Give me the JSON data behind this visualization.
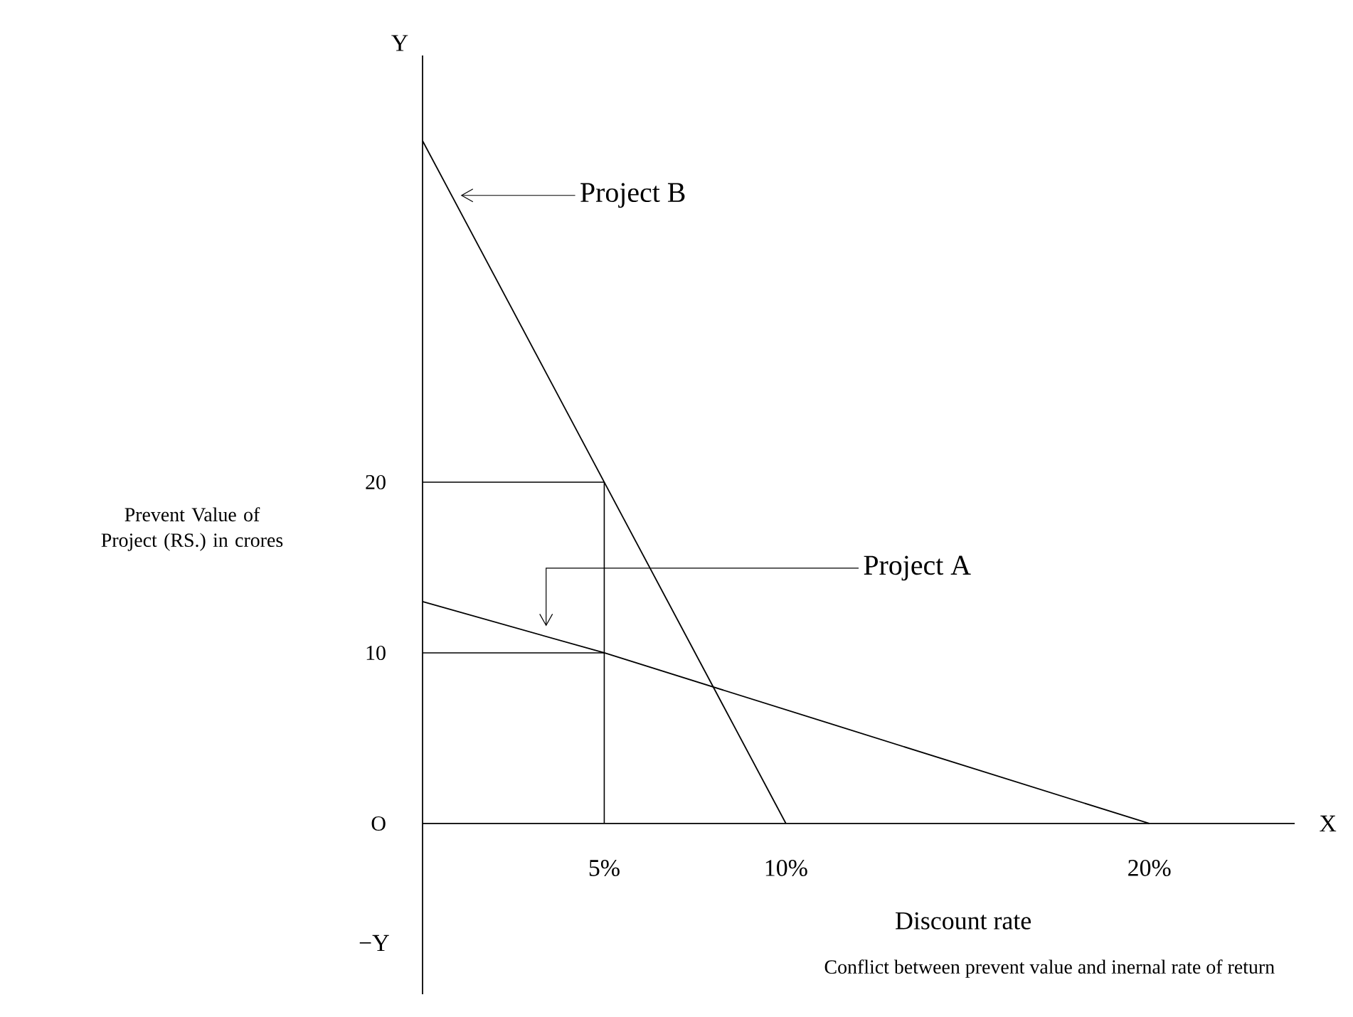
{
  "chart_data": {
    "type": "line",
    "xlabel": "Discount rate",
    "ylabel": "Prevent Value of Project (RS.) in crores",
    "xlim": [
      0,
      24
    ],
    "ylim": [
      -10,
      45
    ],
    "xticks": [
      {
        "value": 5,
        "label": "5%"
      },
      {
        "value": 10,
        "label": "10%"
      },
      {
        "value": 20,
        "label": "20%"
      }
    ],
    "yticks": [
      {
        "value": 0,
        "label": "O"
      },
      10,
      20
    ],
    "series": [
      {
        "name": "Project B",
        "color": "#000000",
        "x": [
          0,
          10
        ],
        "values": [
          40,
          0
        ]
      },
      {
        "name": "Project A",
        "color": "#000000",
        "x": [
          0,
          5,
          20
        ],
        "values": [
          13,
          10,
          0
        ]
      }
    ],
    "ref_lines": [
      {
        "axis": "x",
        "value": 5
      },
      {
        "axis": "y",
        "value": 20
      },
      {
        "axis": "y",
        "value": 10
      }
    ],
    "annotations": [
      "Y",
      "−Y",
      "X",
      "Conflict between prevent value and inernal rate of return"
    ],
    "grid": false,
    "marker": "none",
    "line_style": "solid"
  }
}
